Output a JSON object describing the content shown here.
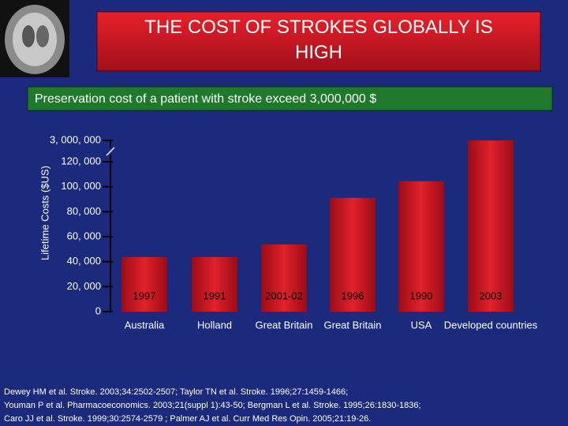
{
  "chart_data": {
    "type": "bar",
    "title": "THE COST OF STROKES GLOBALLY IS HIGH",
    "subtitle": "Preservation cost of a patient with stroke exceed 3,000,000 $",
    "y_label": "Lifetime Costs  ($US)",
    "categories": [
      "Australia",
      "Holland",
      "Great Britain",
      "Great Britain",
      "USA",
      "Developed countries"
    ],
    "year_labels": [
      "1997",
      "1991",
      "2001-02",
      "1996",
      "1990",
      "2003"
    ],
    "values": [
      43700,
      43700,
      53800,
      91100,
      104400,
      3000000
    ],
    "color": "#c8101c",
    "ylim": [
      0,
      3000000
    ],
    "axis_break": [
      120000,
      3000000
    ],
    "yticks": [
      0,
      {
        "value": 20000,
        "label": "20, 000"
      },
      {
        "value": 40000,
        "label": "40, 000"
      },
      {
        "value": 60000,
        "label": "60, 000"
      },
      {
        "value": 80000,
        "label": "80, 000"
      },
      {
        "value": 100000,
        "label": "100, 000"
      },
      {
        "value": 120000,
        "label": "120, 000"
      },
      {
        "value": 3000000,
        "label": "3, 000, 000"
      }
    ],
    "references": [
      "Dewey HM et al. Stroke. 2003;34:2502-2507; Taylor TN et al. Stroke. 1996;27:1459-1466;",
      "Youman P et al. Pharmacoeconomics. 2003;21(suppl 1):43-50; Bergman L et al. Stroke. 1995;26:1830-1836;",
      "Caro JJ et al. Stroke. 1999;30:2574-2579 ; Palmer AJ et al. Curr Med Res Opin. 2005;21:19-26."
    ]
  }
}
